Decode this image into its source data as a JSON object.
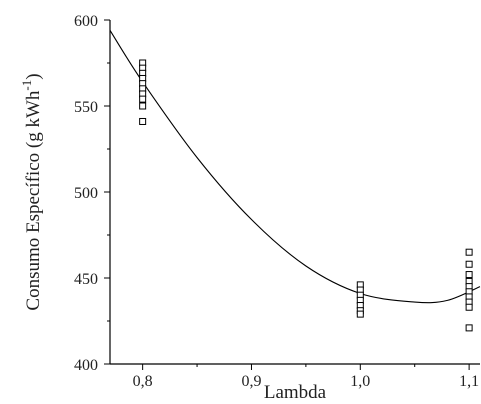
{
  "chart_data": {
    "type": "scatter",
    "xlabel": "Lambda",
    "ylabel_main": "Consumo Específico (g kWh",
    "ylabel_sup": "-1",
    "ylabel_close": ")",
    "xlim": [
      0.77,
      1.11
    ],
    "ylim": [
      400,
      600
    ],
    "x_ticks": [
      0.8,
      0.9,
      1.0,
      1.1
    ],
    "x_tick_labels": [
      "0,8",
      "0,9",
      "1,0",
      "1,1"
    ],
    "x_minor_ticks": [
      0.85,
      0.95,
      1.05
    ],
    "y_ticks": [
      400,
      450,
      500,
      550,
      600
    ],
    "y_tick_labels": [
      "400",
      "450",
      "500",
      "550",
      "600"
    ],
    "y_minor_ticks": [
      425,
      475,
      525,
      575
    ],
    "grid": false,
    "series": [
      {
        "marker": "open-square",
        "points": [
          {
            "x": 0.8,
            "y": 575
          },
          {
            "x": 0.8,
            "y": 572
          },
          {
            "x": 0.8,
            "y": 569
          },
          {
            "x": 0.8,
            "y": 566
          },
          {
            "x": 0.8,
            "y": 563
          },
          {
            "x": 0.8,
            "y": 560
          },
          {
            "x": 0.8,
            "y": 557
          },
          {
            "x": 0.8,
            "y": 554
          },
          {
            "x": 0.8,
            "y": 550
          },
          {
            "x": 0.8,
            "y": 541
          },
          {
            "x": 1.0,
            "y": 446
          },
          {
            "x": 1.0,
            "y": 443
          },
          {
            "x": 1.0,
            "y": 440
          },
          {
            "x": 1.0,
            "y": 437
          },
          {
            "x": 1.0,
            "y": 434
          },
          {
            "x": 1.0,
            "y": 431
          },
          {
            "x": 1.0,
            "y": 429
          },
          {
            "x": 1.1,
            "y": 465
          },
          {
            "x": 1.1,
            "y": 458
          },
          {
            "x": 1.1,
            "y": 452
          },
          {
            "x": 1.1,
            "y": 448
          },
          {
            "x": 1.1,
            "y": 445
          },
          {
            "x": 1.1,
            "y": 442
          },
          {
            "x": 1.1,
            "y": 439
          },
          {
            "x": 1.1,
            "y": 436
          },
          {
            "x": 1.1,
            "y": 433
          },
          {
            "x": 1.1,
            "y": 421
          }
        ]
      }
    ],
    "fit_curve": {
      "type": "polynomial",
      "points": [
        {
          "x": 0.77,
          "y": 594
        },
        {
          "x": 0.8,
          "y": 564
        },
        {
          "x": 0.85,
          "y": 520
        },
        {
          "x": 0.9,
          "y": 484
        },
        {
          "x": 0.95,
          "y": 457
        },
        {
          "x": 1.0,
          "y": 441
        },
        {
          "x": 1.05,
          "y": 436
        },
        {
          "x": 1.08,
          "y": 437
        },
        {
          "x": 1.11,
          "y": 445
        }
      ]
    }
  }
}
